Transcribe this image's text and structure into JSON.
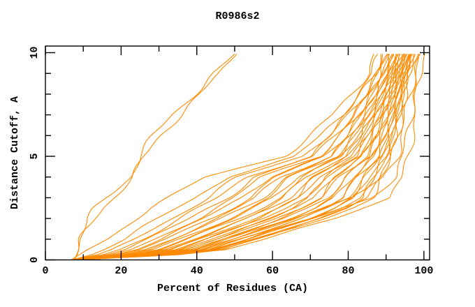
{
  "chart_data": {
    "type": "line",
    "title": "R0986s2",
    "xlabel": "Percent of Residues (CA)",
    "ylabel": "Distance Cutoff, A",
    "xlim": [
      0,
      101.5
    ],
    "ylim": [
      0,
      10.32
    ],
    "grid": false,
    "legend": "none",
    "axis_color": "#000000",
    "curve_color": "#ff8a00",
    "x_major_ticks": [
      0,
      20,
      40,
      60,
      80,
      100
    ],
    "x_minor_ticks": [
      10,
      30,
      50,
      70,
      90
    ],
    "y_major_ticks": [
      0,
      5,
      10
    ],
    "y_minor_ticks": [
      1,
      2,
      3,
      4,
      6,
      7,
      8,
      9
    ],
    "n_curves": 39,
    "cutoff_levels": [
      0,
      0.25,
      0.5,
      1,
      1.5,
      2,
      2.5,
      3,
      4,
      5,
      6,
      7,
      8,
      9,
      10
    ],
    "curves_percent_at_cutoff": [
      [
        7.6,
        8.2,
        8.6,
        9.0,
        10.2,
        11.6,
        13.4,
        16.2,
        22.4,
        24.8,
        28.6,
        33.6,
        39.2,
        44.6,
        50.8
      ],
      [
        7.6,
        8.4,
        8.9,
        9.5,
        11.0,
        12.8,
        15.0,
        17.8,
        23.4,
        26.2,
        30.2,
        35.6,
        41.0,
        46.2,
        49.8
      ],
      [
        6.8,
        9.0,
        11.0,
        16.0,
        20.0,
        24.0,
        28.0,
        33.0,
        42.0,
        63.0,
        70.0,
        76.0,
        81.0,
        85.0,
        87.0
      ],
      [
        6.9,
        12.2,
        15.4,
        20.9,
        25.5,
        30.1,
        34.5,
        39.5,
        47.8,
        66.5,
        72.8,
        78.2,
        82.7,
        86.4,
        88.3
      ],
      [
        7.0,
        13.8,
        17.7,
        23.4,
        28.4,
        33.3,
        37.9,
        42.9,
        50.7,
        68.3,
        74.3,
        79.3,
        83.6,
        87.0,
        89.0
      ],
      [
        7.1,
        15.2,
        19.5,
        25.5,
        30.7,
        35.9,
        40.6,
        45.6,
        53.1,
        69.8,
        75.5,
        80.3,
        84.3,
        87.6,
        89.6
      ],
      [
        7.1,
        16.3,
        21.2,
        27.3,
        32.7,
        38.1,
        42.9,
        47.9,
        55.3,
        71.0,
        76.5,
        81.1,
        85.0,
        88.1,
        90.0
      ],
      [
        7.2,
        17.4,
        22.6,
        28.9,
        34.5,
        40.1,
        45.1,
        50.1,
        57.1,
        72.2,
        77.4,
        81.8,
        85.5,
        88.5,
        90.5
      ],
      [
        7.2,
        18.3,
        23.9,
        30.4,
        36.2,
        42.0,
        47.1,
        52.1,
        58.9,
        73.2,
        78.3,
        82.5,
        86.0,
        89.0,
        90.9
      ],
      [
        7.3,
        19.3,
        25.2,
        31.8,
        37.8,
        43.7,
        48.9,
        53.9,
        60.5,
        74.2,
        79.1,
        83.1,
        86.5,
        89.3,
        91.3
      ],
      [
        7.3,
        20.1,
        26.4,
        33.1,
        39.2,
        45.4,
        50.6,
        55.6,
        62.1,
        75.2,
        79.8,
        83.7,
        87.0,
        89.7,
        91.6
      ],
      [
        7.4,
        20.9,
        27.5,
        34.3,
        40.6,
        46.9,
        52.3,
        57.3,
        63.5,
        76.1,
        80.5,
        84.2,
        87.4,
        90.0,
        92.0
      ],
      [
        7.4,
        21.7,
        28.6,
        35.5,
        42.0,
        48.4,
        53.9,
        58.9,
        65.0,
        76.9,
        81.2,
        84.8,
        87.8,
        90.4,
        92.3
      ],
      [
        7.4,
        22.5,
        29.6,
        36.7,
        43.3,
        49.9,
        55.4,
        60.4,
        66.3,
        77.7,
        81.9,
        85.3,
        88.2,
        90.7,
        92.6
      ],
      [
        7.5,
        23.2,
        30.6,
        37.8,
        44.5,
        51.3,
        56.9,
        61.9,
        67.6,
        78.5,
        82.5,
        85.8,
        88.6,
        91.0,
        92.9
      ],
      [
        7.5,
        23.9,
        31.6,
        38.9,
        45.7,
        52.6,
        58.3,
        63.3,
        68.9,
        79.3,
        83.2,
        86.3,
        89.0,
        91.3,
        93.2
      ],
      [
        7.5,
        24.5,
        32.5,
        39.9,
        46.9,
        53.9,
        59.7,
        64.7,
        70.1,
        80.0,
        83.8,
        86.8,
        89.4,
        91.6,
        93.5
      ],
      [
        7.5,
        25.2,
        33.4,
        40.9,
        48.0,
        55.2,
        61.0,
        66.0,
        71.3,
        80.8,
        84.3,
        87.2,
        89.7,
        91.9,
        93.7
      ],
      [
        7.6,
        25.8,
        34.3,
        41.9,
        49.2,
        56.4,
        62.3,
        67.3,
        72.5,
        81.5,
        84.9,
        87.7,
        90.1,
        92.1,
        94.0
      ],
      [
        7.6,
        26.5,
        35.2,
        42.9,
        50.2,
        57.6,
        63.6,
        68.6,
        73.6,
        82.1,
        85.5,
        88.1,
        90.4,
        92.4,
        94.3
      ],
      [
        7.6,
        27.1,
        36.0,
        43.8,
        51.3,
        58.8,
        64.8,
        69.8,
        74.7,
        82.8,
        86.0,
        88.5,
        90.7,
        92.6,
        94.5
      ],
      [
        7.7,
        27.7,
        36.8,
        44.7,
        52.3,
        59.9,
        66.0,
        71.0,
        75.7,
        83.5,
        86.5,
        88.9,
        91.0,
        92.9,
        94.8
      ],
      [
        7.7,
        28.2,
        37.6,
        45.6,
        53.3,
        61.0,
        67.2,
        72.2,
        76.8,
        84.1,
        87.0,
        89.3,
        91.4,
        93.1,
        95.0
      ],
      [
        7.7,
        28.8,
        38.4,
        46.5,
        54.3,
        62.1,
        68.4,
        73.4,
        77.8,
        84.7,
        87.5,
        89.7,
        91.7,
        93.4,
        95.2
      ],
      [
        7.7,
        29.4,
        39.2,
        47.4,
        55.3,
        63.2,
        69.6,
        74.6,
        78.8,
        85.3,
        88.0,
        90.1,
        92.0,
        93.6,
        95.5
      ],
      [
        7.8,
        29.9,
        40.0,
        48.2,
        56.2,
        64.3,
        70.7,
        75.7,
        79.8,
        85.9,
        88.5,
        90.5,
        92.3,
        93.9,
        95.7
      ],
      [
        7.8,
        30.5,
        40.7,
        49.0,
        57.2,
        65.3,
        71.8,
        76.8,
        80.8,
        86.5,
        89.0,
        90.9,
        92.6,
        94.1,
        95.9
      ],
      [
        7.8,
        31.0,
        41.5,
        49.9,
        58.1,
        66.3,
        72.9,
        77.9,
        81.8,
        87.1,
        89.5,
        91.2,
        92.9,
        94.3,
        96.1
      ],
      [
        7.8,
        31.5,
        42.2,
        50.7,
        59.0,
        67.3,
        73.9,
        78.9,
        82.7,
        87.7,
        89.9,
        91.6,
        93.1,
        94.5,
        96.4
      ],
      [
        7.9,
        32.1,
        42.9,
        51.5,
        59.9,
        68.3,
        75.0,
        80.0,
        83.7,
        88.3,
        90.4,
        92.0,
        93.4,
        94.8,
        96.6
      ],
      [
        7.9,
        32.6,
        43.6,
        52.2,
        60.8,
        69.3,
        76.0,
        81.0,
        84.6,
        88.8,
        90.8,
        92.3,
        93.7,
        95.0,
        96.8
      ],
      [
        7.9,
        33.1,
        44.3,
        53.0,
        61.6,
        70.3,
        77.0,
        82.0,
        85.5,
        89.4,
        91.3,
        92.7,
        94.0,
        95.2,
        97.0
      ],
      [
        7.9,
        33.5,
        45.0,
        53.8,
        62.5,
        71.2,
        78.0,
        83.0,
        86.4,
        89.9,
        91.7,
        93.0,
        94.3,
        95.4,
        97.2
      ],
      [
        8.0,
        34.0,
        45.7,
        54.5,
        63.3,
        72.2,
        79.0,
        84.0,
        87.3,
        90.4,
        92.1,
        93.4,
        94.5,
        95.6,
        97.4
      ],
      [
        8.0,
        34.5,
        46.3,
        55.3,
        64.1,
        73.1,
        80.0,
        85.0,
        88.1,
        91.0,
        92.5,
        93.7,
        94.8,
        95.8,
        97.6
      ],
      [
        8.0,
        35.0,
        47.0,
        56.0,
        65.0,
        74.0,
        81.0,
        86.0,
        89.0,
        91.5,
        92.9,
        94.0,
        95.0,
        96.0,
        97.8
      ],
      [
        7.0,
        27.0,
        39.5,
        49.5,
        57.5,
        65.5,
        73.5,
        81.5,
        89.5,
        92.8,
        94.2,
        95.3,
        96.3,
        97.5,
        98.6
      ],
      [
        7.1,
        30.0,
        43.5,
        53.5,
        61.5,
        70.5,
        78.5,
        86.5,
        92.0,
        94.5,
        95.8,
        96.6,
        97.4,
        98.3,
        99.2
      ],
      [
        7.0,
        35.0,
        48.0,
        58.0,
        66.5,
        76.0,
        83.0,
        91.0,
        94.5,
        96.0,
        96.8,
        97.5,
        98.2,
        99.0,
        99.8
      ]
    ]
  }
}
